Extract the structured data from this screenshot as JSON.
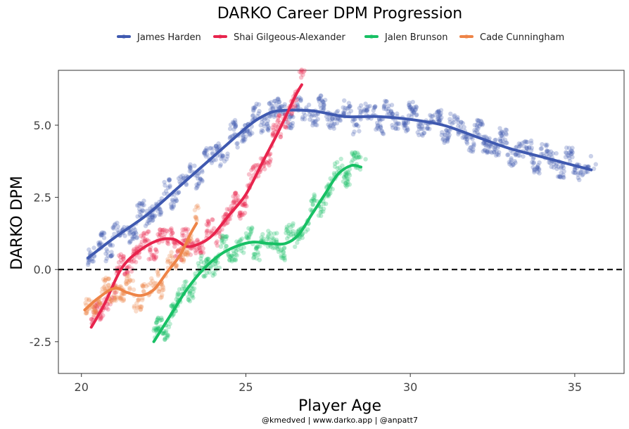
{
  "chart_data": {
    "type": "scatter",
    "title": "DARKO Career DPM Progression",
    "xlabel": "Player Age",
    "ylabel": "DARKO DPM",
    "caption": "@kmedved | www.darko.app | @anpatt7",
    "xlim": [
      19.3,
      36.5
    ],
    "ylim": [
      -3.6,
      6.9
    ],
    "xticks": [
      20,
      25,
      30,
      35
    ],
    "yticks": [
      -2.5,
      0.0,
      2.5,
      5.0
    ],
    "ytick_labels": [
      "-2.5",
      "0.0",
      "2.5",
      "5.0"
    ],
    "reference_line": 0,
    "legend_position": "top",
    "series": [
      {
        "name": "James Harden",
        "color": "#3F59B0",
        "x_range": [
          20.2,
          35.5
        ],
        "trend": [
          [
            20.2,
            0.4
          ],
          [
            21,
            1.1
          ],
          [
            22,
            1.9
          ],
          [
            23,
            2.9
          ],
          [
            24,
            3.9
          ],
          [
            25,
            4.9
          ],
          [
            25.5,
            5.3
          ],
          [
            26,
            5.5
          ],
          [
            27,
            5.5
          ],
          [
            28,
            5.3
          ],
          [
            29,
            5.3
          ],
          [
            30,
            5.2
          ],
          [
            31,
            5.0
          ],
          [
            32,
            4.6
          ],
          [
            33,
            4.2
          ],
          [
            34,
            3.9
          ],
          [
            35,
            3.6
          ],
          [
            35.5,
            3.45
          ]
        ]
      },
      {
        "name": "Shai Gilgeous-Alexander",
        "color": "#E8244D",
        "x_range": [
          20.3,
          26.7
        ],
        "trend": [
          [
            20.3,
            -2.0
          ],
          [
            20.7,
            -1.2
          ],
          [
            21.2,
            0.0
          ],
          [
            21.7,
            0.6
          ],
          [
            22.3,
            1.0
          ],
          [
            22.8,
            1.05
          ],
          [
            23.2,
            0.8
          ],
          [
            23.6,
            0.9
          ],
          [
            24,
            1.2
          ],
          [
            24.5,
            1.9
          ],
          [
            25,
            2.6
          ],
          [
            25.5,
            3.7
          ],
          [
            26,
            4.8
          ],
          [
            26.5,
            6.0
          ],
          [
            26.7,
            6.4
          ]
        ]
      },
      {
        "name": "Jalen Brunson",
        "color": "#17C064",
        "x_range": [
          22.2,
          28.5
        ],
        "trend": [
          [
            22.2,
            -2.5
          ],
          [
            22.7,
            -1.6
          ],
          [
            23.2,
            -0.7
          ],
          [
            23.7,
            0.0
          ],
          [
            24.2,
            0.5
          ],
          [
            24.7,
            0.8
          ],
          [
            25.2,
            0.95
          ],
          [
            25.7,
            0.9
          ],
          [
            26.2,
            0.9
          ],
          [
            26.6,
            1.2
          ],
          [
            27,
            1.9
          ],
          [
            27.4,
            2.6
          ],
          [
            27.8,
            3.3
          ],
          [
            28.2,
            3.6
          ],
          [
            28.5,
            3.55
          ]
        ]
      },
      {
        "name": "Cade Cunningham",
        "color": "#EE8447",
        "x_range": [
          20.1,
          23.5
        ],
        "trend": [
          [
            20.1,
            -1.4
          ],
          [
            20.5,
            -1.0
          ],
          [
            21,
            -0.65
          ],
          [
            21.4,
            -0.8
          ],
          [
            21.8,
            -0.9
          ],
          [
            22.2,
            -0.7
          ],
          [
            22.6,
            -0.1
          ],
          [
            23,
            0.5
          ],
          [
            23.3,
            1.2
          ],
          [
            23.5,
            1.6
          ]
        ]
      }
    ]
  }
}
